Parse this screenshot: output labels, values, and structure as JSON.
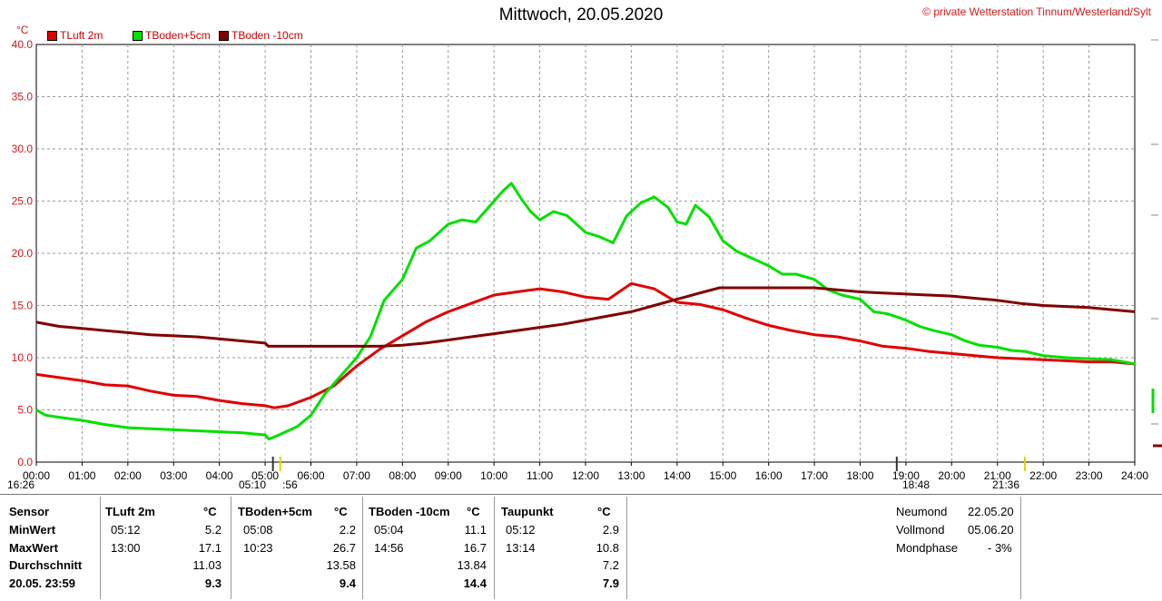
{
  "header": {
    "title": "Mittwoch, 20.05.2020",
    "copyright": "© private Wetterstation Tinnum/Westerland/Sylt",
    "unit": "°C"
  },
  "chart_data": {
    "type": "line",
    "title": "Mittwoch, 20.05.2020",
    "ylabel": "°C",
    "ylim": [
      0,
      40
    ],
    "yticks": [
      "0.0",
      "5.0",
      "10.0",
      "15.0",
      "20.0",
      "25.0",
      "30.0",
      "35.0",
      "40.0"
    ],
    "xlim": [
      0,
      24
    ],
    "xticks": [
      "00:00",
      "01:00",
      "02:00",
      "03:00",
      "04:00",
      "05:00",
      "06:00",
      "07:00",
      "08:00",
      "09:00",
      "10:00",
      "11:00",
      "12:00",
      "13:00",
      "14:00",
      "15:00",
      "16:00",
      "17:00",
      "18:00",
      "19:00",
      "20:00",
      "21:00",
      "22:00",
      "23:00",
      "24:00"
    ],
    "grid": true,
    "legend": "top-left",
    "series": [
      {
        "name": "TLuft 2m",
        "color": "#e00000",
        "x": [
          0,
          0.5,
          1,
          1.5,
          2,
          2.5,
          3,
          3.5,
          4,
          4.5,
          5,
          5.2,
          5.5,
          6,
          6.5,
          7,
          7.5,
          8,
          8.5,
          9,
          9.5,
          10,
          10.5,
          11,
          11.5,
          12,
          12.5,
          13,
          13.5,
          14,
          14.5,
          15,
          15.5,
          16,
          16.5,
          17,
          17.5,
          18,
          18.5,
          19,
          19.5,
          20,
          20.5,
          21,
          21.5,
          22,
          22.5,
          23,
          23.5,
          24
        ],
        "y": [
          8.4,
          8.1,
          7.8,
          7.4,
          7.3,
          6.8,
          6.4,
          6.3,
          5.9,
          5.6,
          5.4,
          5.2,
          5.4,
          6.2,
          7.3,
          9.2,
          10.8,
          12.1,
          13.4,
          14.4,
          15.2,
          16.0,
          16.3,
          16.6,
          16.3,
          15.8,
          15.6,
          17.1,
          16.6,
          15.3,
          15.1,
          14.6,
          13.8,
          13.1,
          12.6,
          12.2,
          12.0,
          11.6,
          11.1,
          10.9,
          10.6,
          10.4,
          10.2,
          10.0,
          9.9,
          9.8,
          9.7,
          9.6,
          9.6,
          9.4
        ]
      },
      {
        "name": "TBoden+5cm",
        "color": "#00e000",
        "x": [
          0,
          0.2,
          0.5,
          1,
          1.5,
          2,
          2.5,
          3,
          3.5,
          4,
          4.5,
          5,
          5.08,
          5.3,
          5.7,
          6,
          6.3,
          6.7,
          7,
          7.3,
          7.6,
          8,
          8.3,
          8.6,
          9,
          9.3,
          9.6,
          10,
          10.2,
          10.38,
          10.6,
          10.8,
          11,
          11.3,
          11.6,
          12,
          12.3,
          12.6,
          12.9,
          13.2,
          13.5,
          13.8,
          14,
          14.2,
          14.4,
          14.7,
          15,
          15.3,
          15.6,
          16,
          16.3,
          16.6,
          17,
          17.3,
          17.6,
          18,
          18.3,
          18.6,
          19,
          19.3,
          19.6,
          20,
          20.3,
          20.6,
          21,
          21.3,
          21.6,
          22,
          22.5,
          23,
          23.5,
          24
        ],
        "y": [
          5.0,
          4.5,
          4.3,
          4.0,
          3.6,
          3.3,
          3.2,
          3.1,
          3.0,
          2.9,
          2.8,
          2.6,
          2.2,
          2.6,
          3.4,
          4.5,
          6.5,
          8.5,
          10.0,
          12.0,
          15.5,
          17.5,
          20.5,
          21.2,
          22.8,
          23.2,
          23.0,
          25.0,
          26.0,
          26.7,
          25.2,
          24.0,
          23.2,
          24.0,
          23.6,
          22.0,
          21.6,
          21.0,
          23.6,
          24.8,
          25.4,
          24.4,
          23.0,
          22.8,
          24.6,
          23.5,
          21.2,
          20.2,
          19.6,
          18.8,
          18.0,
          18.0,
          17.5,
          16.5,
          16.0,
          15.6,
          14.4,
          14.2,
          13.6,
          13.0,
          12.6,
          12.2,
          11.6,
          11.2,
          11.0,
          10.7,
          10.6,
          10.2,
          10.0,
          9.9,
          9.8,
          9.4
        ]
      },
      {
        "name": "TBoden -10cm",
        "color": "#800000",
        "x": [
          0,
          0.5,
          1,
          1.5,
          2,
          2.5,
          3,
          3.5,
          4,
          4.5,
          5,
          5.07,
          5.5,
          6,
          6.5,
          7,
          7.5,
          8,
          8.5,
          9,
          9.5,
          10,
          10.5,
          11,
          11.5,
          12,
          12.5,
          13,
          13.5,
          14,
          14.5,
          14.93,
          15.5,
          16,
          16.5,
          17,
          17.5,
          18,
          18.5,
          19,
          19.5,
          20,
          20.5,
          21,
          21.5,
          22,
          22.5,
          23,
          23.5,
          24
        ],
        "y": [
          13.4,
          13.0,
          12.8,
          12.6,
          12.4,
          12.2,
          12.1,
          12.0,
          11.8,
          11.6,
          11.4,
          11.1,
          11.1,
          11.1,
          11.1,
          11.1,
          11.1,
          11.2,
          11.4,
          11.7,
          12.0,
          12.3,
          12.6,
          12.9,
          13.2,
          13.6,
          14.0,
          14.4,
          15.0,
          15.6,
          16.2,
          16.7,
          16.7,
          16.7,
          16.7,
          16.7,
          16.5,
          16.3,
          16.2,
          16.1,
          16.0,
          15.9,
          15.7,
          15.5,
          15.2,
          15.0,
          14.9,
          14.8,
          14.6,
          14.4
        ]
      }
    ]
  },
  "events": {
    "sunrise": "05:10",
    "sunrise_min": ":56",
    "sunset": "18:48",
    "moon_event": "21:36",
    "left_time": "16:26"
  },
  "stats": {
    "headers": [
      "Sensor",
      "TLuft 2m",
      "°C",
      "TBoden+5cm",
      "°C",
      "TBoden -10cm",
      "°C",
      "Taupunkt",
      "°C"
    ],
    "rows": [
      {
        "label": "MinWert",
        "cells": [
          "05:12",
          "5.2",
          "05:08",
          "2.2",
          "05:04",
          "11.1",
          "05:12",
          "2.9"
        ]
      },
      {
        "label": "MaxWert",
        "cells": [
          "13:00",
          "17.1",
          "10:23",
          "26.7",
          "14:56",
          "16.7",
          "13:14",
          "10.8"
        ]
      },
      {
        "label": "Durchschnitt",
        "cells": [
          "",
          "11.03",
          "",
          "13.58",
          "",
          "13.84",
          "",
          "7.2"
        ]
      },
      {
        "label": "20.05. 23:59",
        "cells": [
          "",
          "9.3",
          "",
          "9.4",
          "",
          "14.4",
          "",
          "7.9"
        ]
      }
    ]
  },
  "moon": [
    {
      "label": "Neumond",
      "value": "22.05.20"
    },
    {
      "label": "Vollmond",
      "value": "05.06.20"
    },
    {
      "label": "Mondphase",
      "value": "- 3%"
    }
  ]
}
